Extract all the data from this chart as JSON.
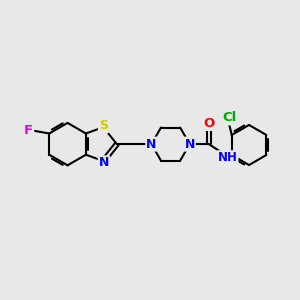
{
  "background_color": "#e8e8e8",
  "atom_colors": {
    "F": "#ee00ee",
    "S": "#cccc00",
    "N": "#0000ff",
    "O": "#ff0000",
    "Cl": "#00aa00",
    "H": "#0000ff",
    "C": "#000000"
  },
  "bond_color": "#000000",
  "bond_width": 1.5,
  "figsize": [
    3.0,
    3.0
  ],
  "dpi": 100
}
